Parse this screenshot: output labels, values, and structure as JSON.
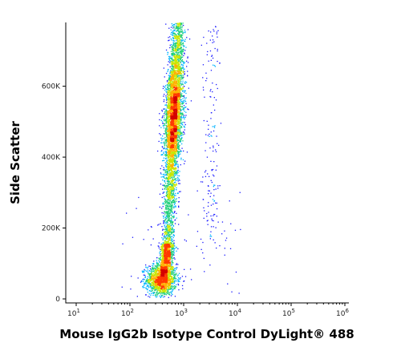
{
  "chart_data": {
    "type": "scatter",
    "title": "",
    "xlabel": "Mouse IgG2b Isotype Control DyLight® 488",
    "ylabel": "Side Scatter",
    "x_scale": "log",
    "x_range": [
      10,
      1000000
    ],
    "y_range": [
      0,
      780000
    ],
    "x_ticks": [
      {
        "value": 10,
        "base": "10",
        "exp": "1"
      },
      {
        "value": 100,
        "base": "10",
        "exp": "2"
      },
      {
        "value": 1000,
        "base": "10",
        "exp": "3"
      },
      {
        "value": 10000,
        "base": "10",
        "exp": "4"
      },
      {
        "value": 100000,
        "base": "10",
        "exp": "5"
      },
      {
        "value": 1000000,
        "base": "10",
        "exp": "6"
      }
    ],
    "y_ticks": [
      {
        "value": 0,
        "label": "0"
      },
      {
        "value": 200000,
        "label": "200K"
      },
      {
        "value": 400000,
        "label": "400K"
      },
      {
        "value": 600000,
        "label": "600K"
      }
    ],
    "grid": false,
    "legend": "none",
    "density_colors": [
      "#1a1aff",
      "#00b4ff",
      "#22d07a",
      "#c8e600",
      "#ffb000",
      "#ff3a00",
      "#d40000"
    ],
    "populations": [
      {
        "x_center": 380,
        "x_spread_log": 0.14,
        "y_center": 55000,
        "y_spread": 22000,
        "count": 1500
      },
      {
        "x_center": 700,
        "x_spread_log": 0.07,
        "y_min": 100000,
        "y_max": 780000,
        "y_peak": 520000,
        "count": 5200
      },
      {
        "x_center": 3200,
        "x_spread_log": 0.08,
        "y_min": 150000,
        "y_max": 780000,
        "count": 160
      }
    ]
  }
}
